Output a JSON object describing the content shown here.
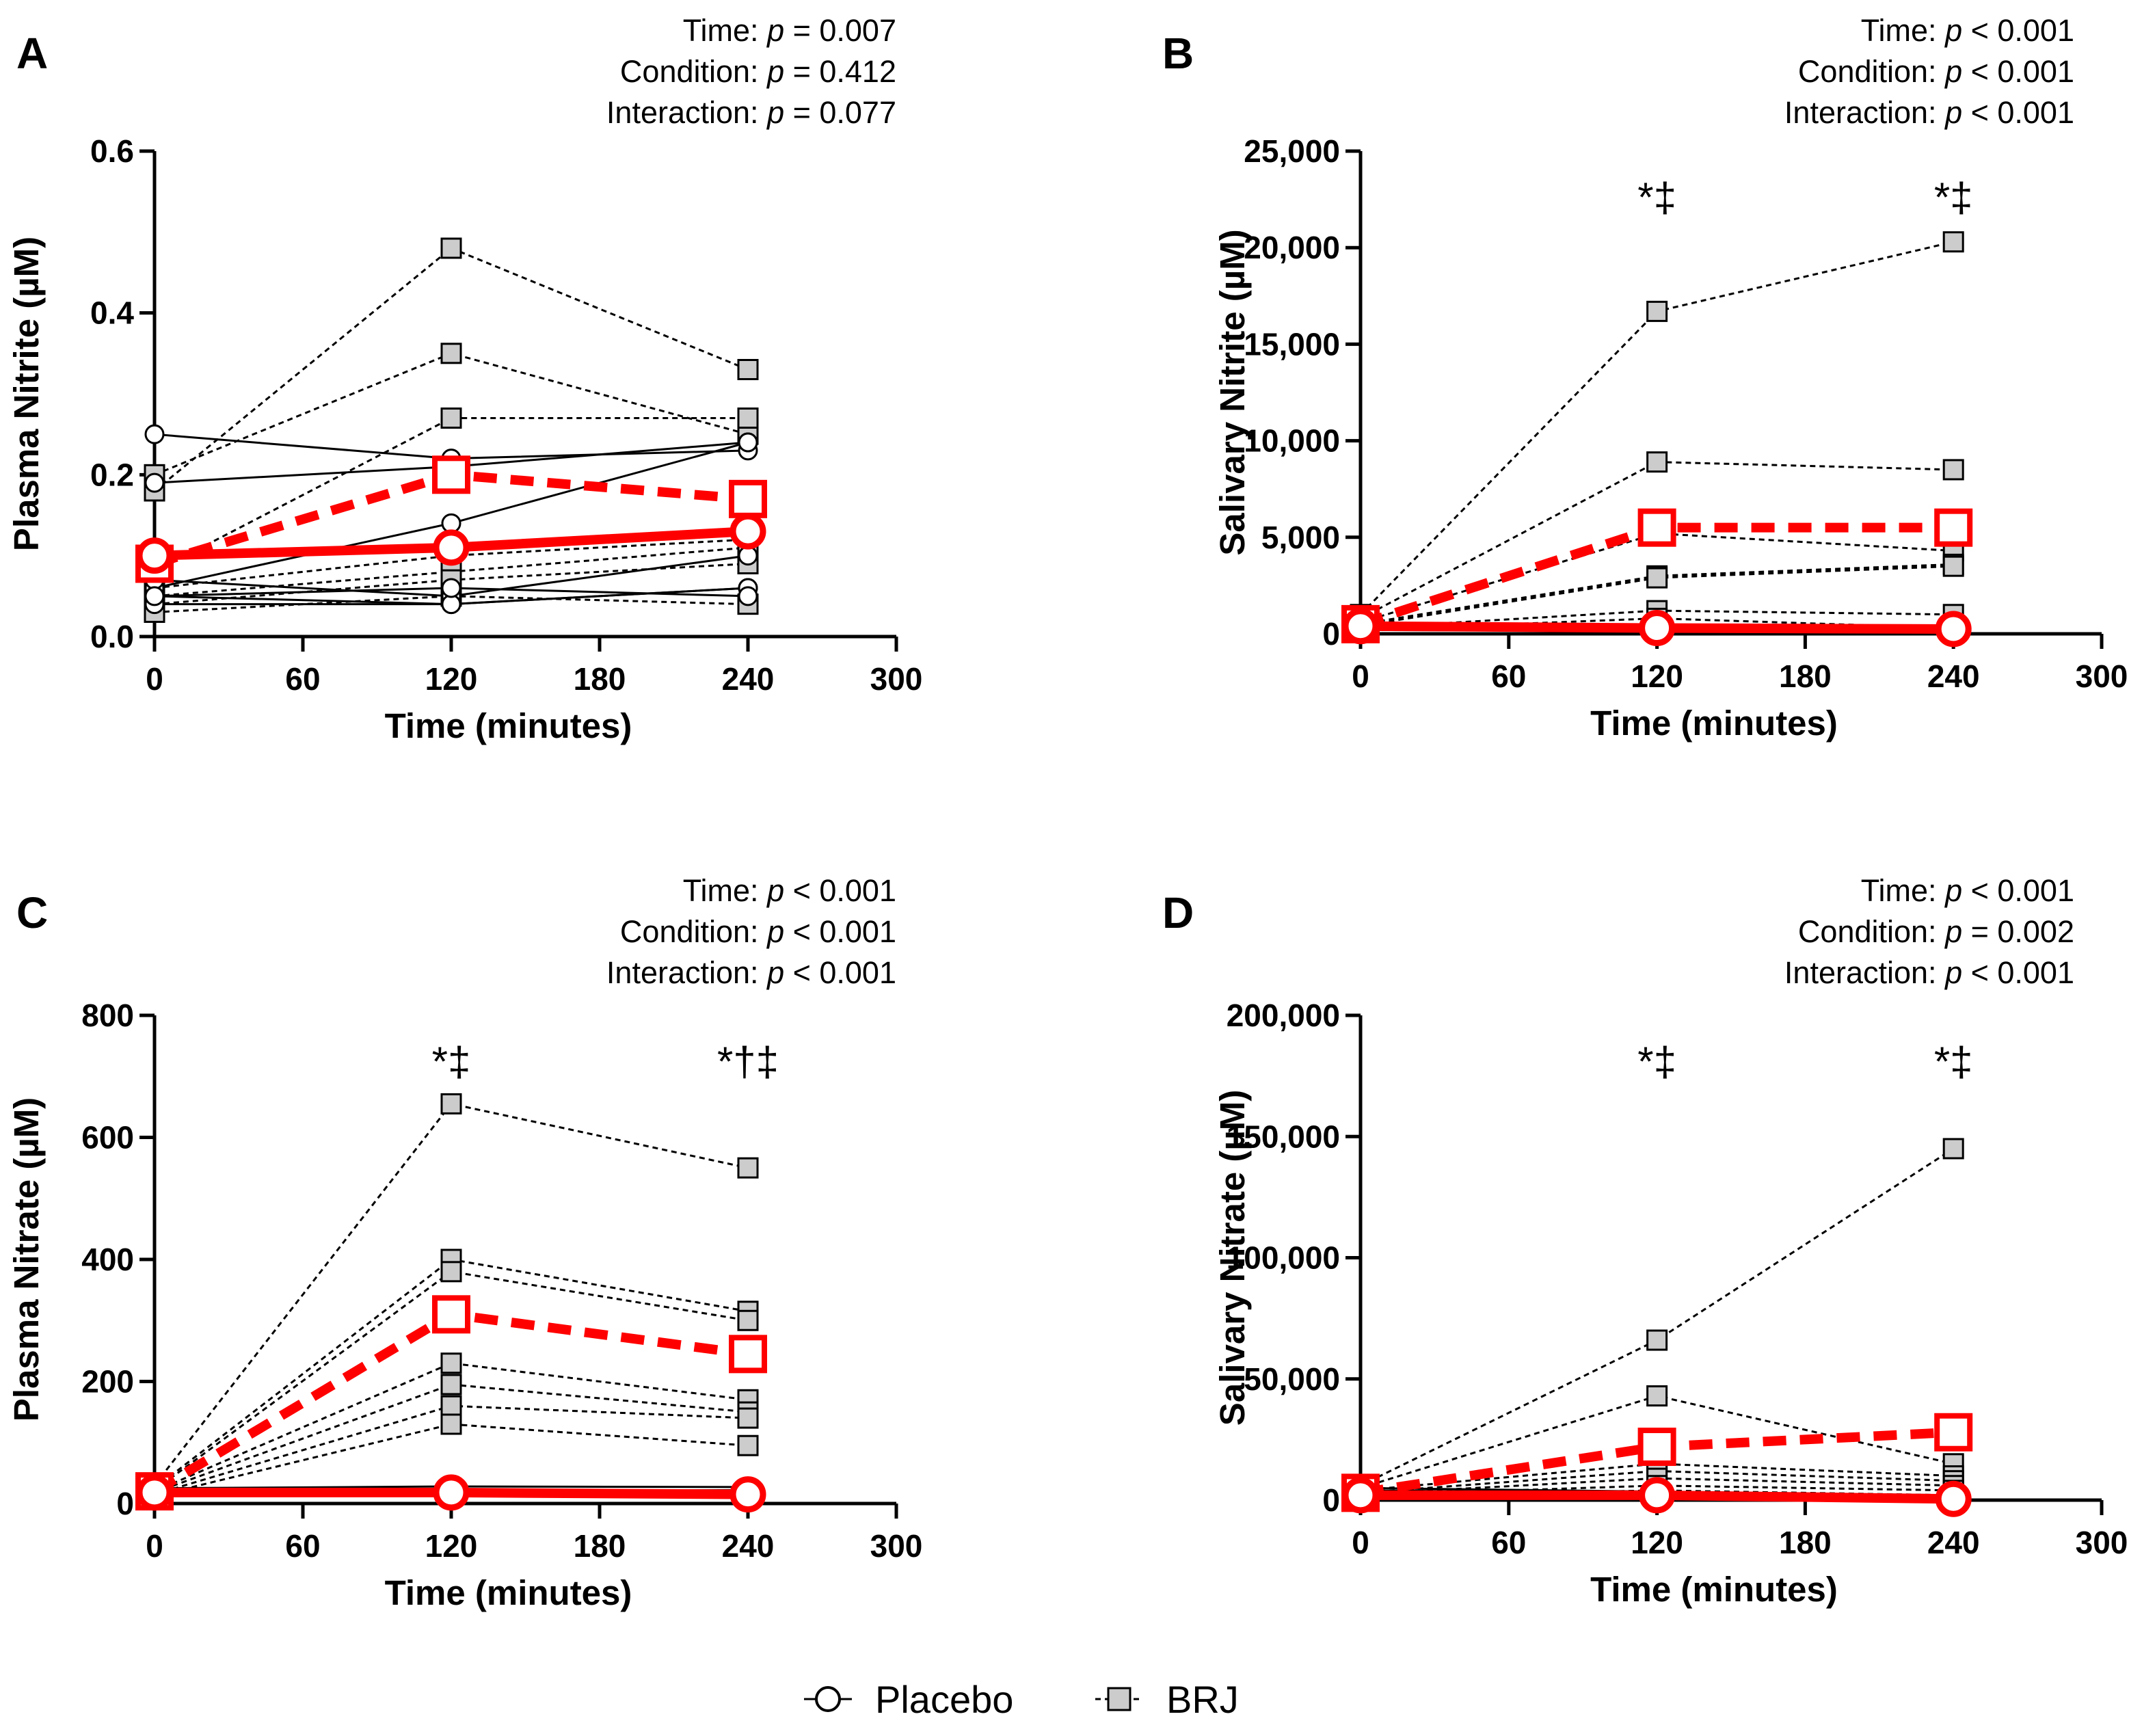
{
  "figure": {
    "legend": {
      "placebo_label": "Placebo",
      "brj_label": "BRJ"
    },
    "colors": {
      "individual_line": "#000000",
      "brj_marker_fill": "#cccccc",
      "mean": "#ff0000",
      "placebo_marker_fill": "#ffffff"
    }
  },
  "chart_data": [
    {
      "panel": "A",
      "type": "line",
      "xlabel": "Time (minutes)",
      "ylabel": "Plasma Nitrite (µM)",
      "xlim": [
        0,
        300
      ],
      "ylim": [
        0,
        0.6
      ],
      "xticks": [
        0,
        60,
        120,
        180,
        240,
        300
      ],
      "yticks": [
        0,
        0.2,
        0.4,
        0.6
      ],
      "ytick_labels": [
        "0.0",
        "0.2",
        "0.4",
        "0.6"
      ],
      "stats": [
        {
          "label": "Time: ",
          "p": "p",
          "value": " = 0.007"
        },
        {
          "label": "Condition: ",
          "p": "p",
          "value": " = 0.412"
        },
        {
          "label": "Interaction: ",
          "p": "p",
          "value": " = 0.077"
        }
      ],
      "significance": [],
      "x": [
        0,
        120,
        240
      ],
      "placebo_individual": [
        [
          0.25,
          0.22,
          0.23
        ],
        [
          0.19,
          0.21,
          0.24
        ],
        [
          0.06,
          0.14,
          0.24
        ],
        [
          0.05,
          0.04,
          0.06
        ],
        [
          0.07,
          0.05,
          0.1
        ],
        [
          0.04,
          0.04,
          0.06
        ],
        [
          0.05,
          0.06,
          0.05
        ]
      ],
      "brj_individual": [
        [
          0.18,
          0.48,
          0.33
        ],
        [
          0.2,
          0.35,
          0.25
        ],
        [
          0.08,
          0.27,
          0.27
        ],
        [
          0.06,
          0.1,
          0.12
        ],
        [
          0.05,
          0.08,
          0.11
        ],
        [
          0.04,
          0.07,
          0.09
        ],
        [
          0.03,
          0.05,
          0.04
        ]
      ],
      "placebo_mean": [
        0.1,
        0.11,
        0.13
      ],
      "brj_mean": [
        0.09,
        0.2,
        0.17
      ]
    },
    {
      "panel": "B",
      "type": "line",
      "xlabel": "Time (minutes)",
      "ylabel": "Salivary Nitrite (µM)",
      "xlim": [
        0,
        300
      ],
      "ylim": [
        0,
        25000
      ],
      "xticks": [
        0,
        60,
        120,
        180,
        240,
        300
      ],
      "yticks": [
        0,
        5000,
        10000,
        15000,
        20000,
        25000
      ],
      "ytick_labels": [
        "0",
        "5,000",
        "10,000",
        "15,000",
        "20,000",
        "25,000"
      ],
      "stats": [
        {
          "label": "Time: ",
          "p": "p",
          "value": " < 0.001"
        },
        {
          "label": "Condition: ",
          "p": "p",
          "value": " < 0.001"
        },
        {
          "label": "Interaction: ",
          "p": "p",
          "value": " < 0.001"
        }
      ],
      "significance": [
        {
          "x": 120,
          "text": "*‡"
        },
        {
          "x": 240,
          "text": "*‡"
        }
      ],
      "x": [
        0,
        120,
        240
      ],
      "placebo_individual": [
        [
          600,
          300,
          200
        ],
        [
          400,
          500,
          150
        ],
        [
          300,
          200,
          100
        ],
        [
          500,
          350,
          250
        ],
        [
          200,
          150,
          120
        ]
      ],
      "brj_individual": [
        [
          1000,
          16700,
          20300
        ],
        [
          800,
          8900,
          8500
        ],
        [
          600,
          5200,
          4300
        ],
        [
          500,
          3000,
          3600
        ],
        [
          400,
          2900,
          3500
        ],
        [
          300,
          1200,
          1000
        ],
        [
          200,
          800,
          300
        ]
      ],
      "placebo_mean": [
        400,
        300,
        250
      ],
      "brj_mean": [
        500,
        5500,
        5500
      ]
    },
    {
      "panel": "C",
      "type": "line",
      "xlabel": "Time (minutes)",
      "ylabel": "Plasma Nitrate (µM)",
      "xlim": [
        0,
        300
      ],
      "ylim": [
        0,
        800
      ],
      "xticks": [
        0,
        60,
        120,
        180,
        240,
        300
      ],
      "yticks": [
        0,
        200,
        400,
        600,
        800
      ],
      "ytick_labels": [
        "0",
        "200",
        "400",
        "600",
        "800"
      ],
      "stats": [
        {
          "label": "Time: ",
          "p": "p",
          "value": " < 0.001"
        },
        {
          "label": "Condition: ",
          "p": "p",
          "value": " < 0.001"
        },
        {
          "label": "Interaction: ",
          "p": "p",
          "value": " < 0.001"
        }
      ],
      "significance": [
        {
          "x": 120,
          "text": "*‡"
        },
        {
          "x": 240,
          "text": "*†‡"
        }
      ],
      "x": [
        0,
        120,
        240
      ],
      "placebo_individual": [
        [
          25,
          28,
          27
        ],
        [
          18,
          20,
          22
        ],
        [
          15,
          16,
          14
        ],
        [
          12,
          14,
          13
        ],
        [
          20,
          18,
          16
        ]
      ],
      "brj_individual": [
        [
          30,
          655,
          550
        ],
        [
          25,
          400,
          315
        ],
        [
          22,
          380,
          300
        ],
        [
          20,
          230,
          170
        ],
        [
          18,
          195,
          150
        ],
        [
          15,
          160,
          140
        ],
        [
          12,
          130,
          95
        ]
      ],
      "placebo_mean": [
        18,
        18,
        15
      ],
      "brj_mean": [
        20,
        310,
        245
      ]
    },
    {
      "panel": "D",
      "type": "line",
      "xlabel": "Time (minutes)",
      "ylabel": "Salivary  Nitrate (µM)",
      "xlim": [
        0,
        300
      ],
      "ylim": [
        0,
        200000
      ],
      "xticks": [
        0,
        60,
        120,
        180,
        240,
        300
      ],
      "yticks": [
        0,
        50000,
        100000,
        150000,
        200000
      ],
      "ytick_labels": [
        "0",
        "50,000",
        "100,000",
        "150,000",
        "200,000"
      ],
      "stats": [
        {
          "label": "Time: ",
          "p": "p",
          "value": " < 0.001"
        },
        {
          "label": "Condition: ",
          "p": "p",
          "value": " = 0.002"
        },
        {
          "label": "Interaction: ",
          "p": "p",
          "value": " < 0.001"
        }
      ],
      "significance": [
        {
          "x": 120,
          "text": "*‡"
        },
        {
          "x": 240,
          "text": "*‡"
        }
      ],
      "x": [
        0,
        120,
        240
      ],
      "placebo_individual": [
        [
          4000,
          3000,
          1500
        ],
        [
          3000,
          2500,
          1000
        ],
        [
          2000,
          1500,
          800
        ],
        [
          5000,
          3500,
          2000
        ],
        [
          1500,
          1000,
          500
        ]
      ],
      "brj_individual": [
        [
          6000,
          66000,
          145000
        ],
        [
          5000,
          43000,
          15000
        ],
        [
          4000,
          15000,
          10000
        ],
        [
          3000,
          12000,
          8000
        ],
        [
          2500,
          9000,
          6000
        ],
        [
          2000,
          6000,
          4000
        ],
        [
          1500,
          4000,
          2000
        ]
      ],
      "placebo_mean": [
        2000,
        2000,
        500
      ],
      "brj_mean": [
        3000,
        22000,
        28000
      ]
    }
  ]
}
